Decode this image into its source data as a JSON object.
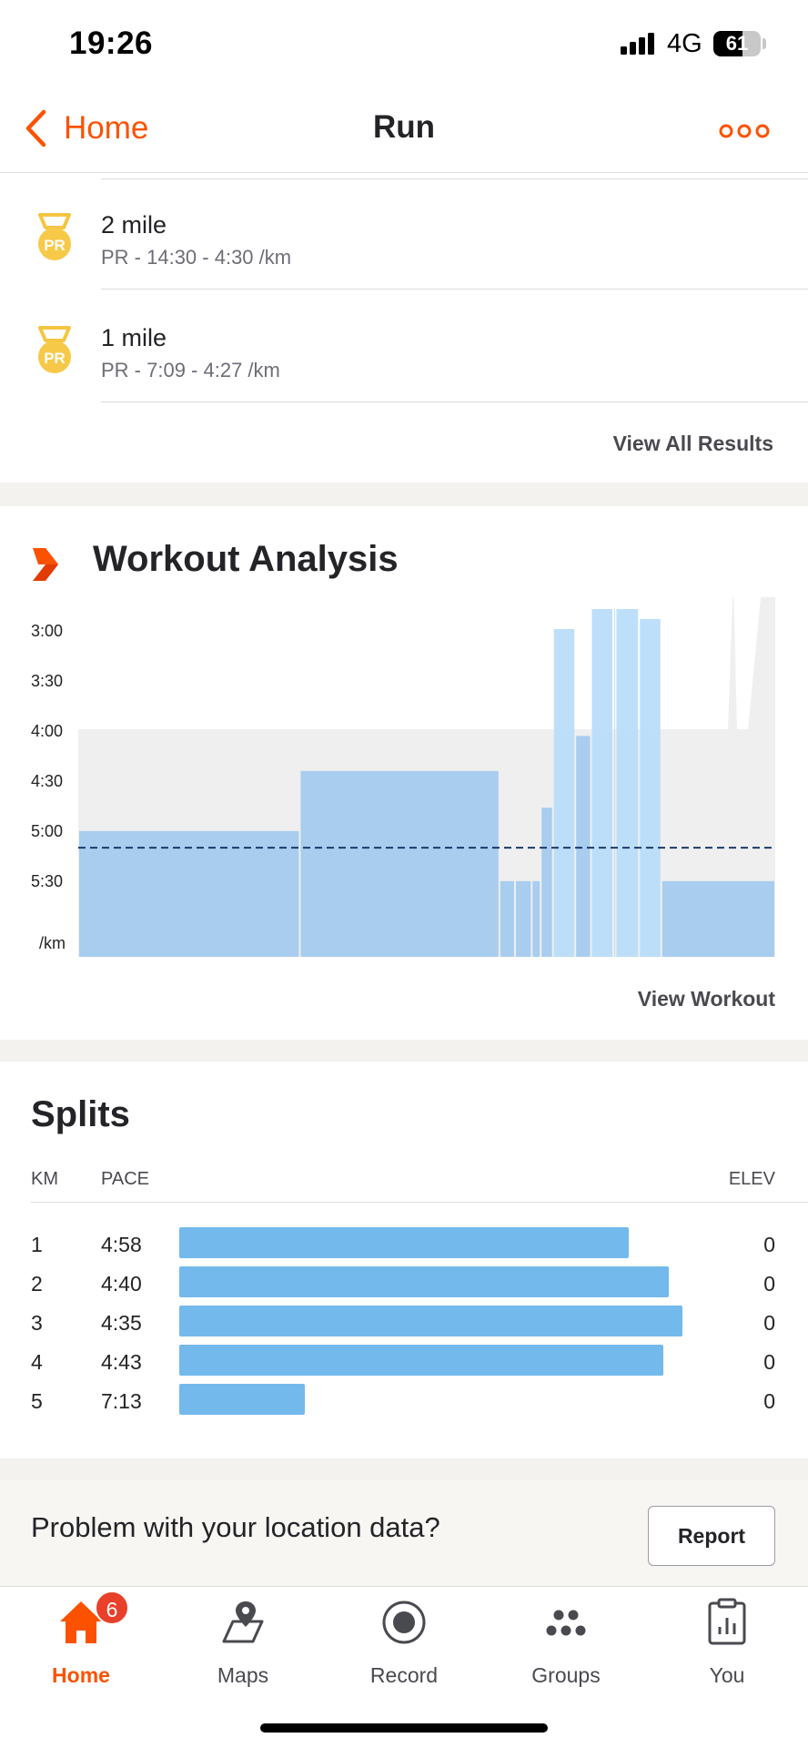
{
  "status_bar": {
    "time": "19:26",
    "network": "4G",
    "battery": "61",
    "battery_level": 0.61
  },
  "nav": {
    "back_label": "Home",
    "title": "Run",
    "more_icon": "more-dots-icon"
  },
  "results": {
    "items": [
      {
        "title": "2 mile",
        "subtitle": "PR - 14:30 - 4:30 /km",
        "icon": "pr-medal-icon"
      },
      {
        "title": "1 mile",
        "subtitle": "PR - 7:09 - 4:27 /km",
        "icon": "pr-medal-icon"
      }
    ],
    "view_all": "View All Results"
  },
  "analysis": {
    "title": "Workout Analysis",
    "view_workout": "View Workout",
    "colors": {
      "bar": "#a8cdee",
      "bar_light": "#b7dbf8",
      "zone": "#efefef",
      "avg_line": "#1b3a6b",
      "accent": "#fc5200"
    }
  },
  "chart_data": {
    "type": "bar",
    "y_tick_labels": [
      "3:00",
      "3:30",
      "4:00",
      "4:30",
      "5:00",
      "5:30"
    ],
    "y_unit": "/km",
    "ylim_seconds": [
      150,
      360
    ],
    "average_pace_seconds": 311,
    "zone_top_seconds": 240,
    "intervals": [
      {
        "start": 0,
        "end": 0.3178,
        "pace": 301
      },
      {
        "start": 0.3178,
        "end": 0.6042,
        "pace": 265
      },
      {
        "start": 0.6042,
        "end": 0.6266,
        "pace": 331
      },
      {
        "start": 0.6266,
        "end": 0.6506,
        "pace": 331
      },
      {
        "start": 0.6506,
        "end": 0.6635,
        "pace": 331
      },
      {
        "start": 0.6635,
        "end": 0.6811,
        "pace": 287
      },
      {
        "start": 0.6811,
        "end": 0.7131,
        "pace": 180
      },
      {
        "start": 0.7131,
        "end": 0.7356,
        "pace": 244
      },
      {
        "start": 0.7356,
        "end": 0.7676,
        "pace": 168
      },
      {
        "start": 0.7676,
        "end": 0.7708,
        "pace": 168
      },
      {
        "start": 0.7708,
        "end": 0.8045,
        "pace": 168
      },
      {
        "start": 0.8045,
        "end": 0.8365,
        "pace": 174
      },
      {
        "start": 0.8365,
        "end": 1.0,
        "pace": 331
      }
    ]
  },
  "splits": {
    "title": "Splits",
    "headers": {
      "km": "KM",
      "pace": "PACE",
      "elev": "ELEV"
    },
    "rows": [
      {
        "km": "1",
        "pace": "4:58",
        "elev": "0",
        "bar_fraction": 0.8933
      },
      {
        "km": "2",
        "pace": "4:40",
        "elev": "0",
        "bar_fraction": 0.9733
      },
      {
        "km": "3",
        "pace": "4:35",
        "elev": "0",
        "bar_fraction": 1.0
      },
      {
        "km": "4",
        "pace": "4:43",
        "elev": "0",
        "bar_fraction": 0.9622
      },
      {
        "km": "5",
        "pace": "7:13",
        "elev": "0",
        "bar_fraction": 0.2489
      }
    ]
  },
  "problem": {
    "text": "Problem with your location data?",
    "report_label": "Report"
  },
  "tab_bar": {
    "tabs": [
      {
        "label": "Home",
        "icon": "home-icon",
        "active": true,
        "badge": "6"
      },
      {
        "label": "Maps",
        "icon": "map-pin-icon",
        "active": false
      },
      {
        "label": "Record",
        "icon": "record-icon",
        "active": false
      },
      {
        "label": "Groups",
        "icon": "groups-icon",
        "active": false
      },
      {
        "label": "You",
        "icon": "clipboard-chart-icon",
        "active": false
      }
    ]
  }
}
